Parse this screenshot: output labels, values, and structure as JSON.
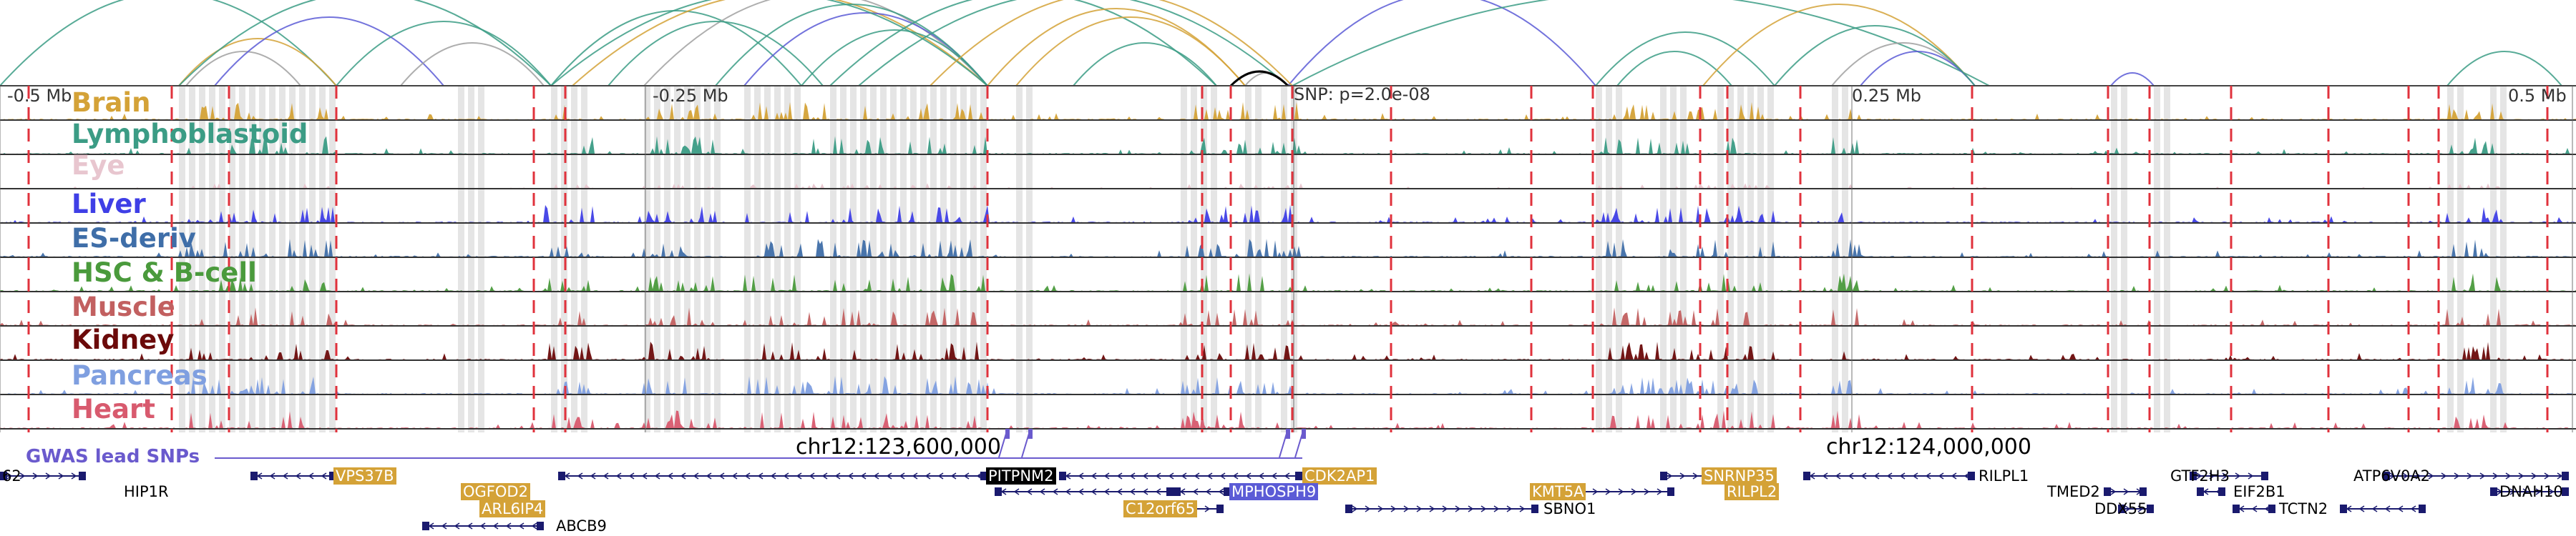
{
  "colors": {
    "brain": "#d4a237",
    "lymphoblastoid": "#3b9c85",
    "eye": "#e8c6cf",
    "liver": "#3f3fe6",
    "es_deriv": "#3f6ea8",
    "hsc_bcell": "#4a9a3c",
    "muscle": "#c26060",
    "kidney": "#6b0a0a",
    "pancreas": "#7f9fe0",
    "heart": "#d85a6e",
    "gwas": "#6a5acd",
    "marker": "#e0323c"
  },
  "tracks": [
    {
      "label": "Brain",
      "color": "#d4a237"
    },
    {
      "label": "Lymphoblastoid",
      "color": "#3b9c85"
    },
    {
      "label": "Eye",
      "color": "#e8c6cf"
    },
    {
      "label": "Liver",
      "color": "#3f3fe6"
    },
    {
      "label": "ES-deriv",
      "color": "#3f6ea8"
    },
    {
      "label": "HSC & B-cell",
      "color": "#4a9a3c"
    },
    {
      "label": "Muscle",
      "color": "#c26060"
    },
    {
      "label": "Kidney",
      "color": "#6b0a0a"
    },
    {
      "label": "Pancreas",
      "color": "#7f9fe0"
    },
    {
      "label": "Heart",
      "color": "#d85a6e"
    }
  ],
  "axis_labels": [
    "-0.5 Mb",
    "-0.25 Mb",
    "0.25 Mb",
    "0.5 Mb"
  ],
  "snp_label": "SNP: p=2.0e-08",
  "gwas_label": "GWAS lead SNPs",
  "chrom_labels": [
    "chr12:123,600,000",
    "chr12:124,000,000"
  ],
  "genes": [
    {
      "name": "62",
      "style": "plain"
    },
    {
      "name": "HIP1R",
      "style": "plain"
    },
    {
      "name": "VPS37B",
      "style": "orange"
    },
    {
      "name": "OGFOD2",
      "style": "orange"
    },
    {
      "name": "ARL6IP4",
      "style": "orange"
    },
    {
      "name": "ABCB9",
      "style": "plain"
    },
    {
      "name": "PITPNM2",
      "style": "black"
    },
    {
      "name": "CDK2AP1",
      "style": "orange"
    },
    {
      "name": "MPHOSPH9",
      "style": "purple"
    },
    {
      "name": "C12orf65",
      "style": "orange"
    },
    {
      "name": "KMT5A",
      "style": "orange"
    },
    {
      "name": "SBNO1",
      "style": "plain"
    },
    {
      "name": "SNRNP35",
      "style": "orange"
    },
    {
      "name": "RILPL2",
      "style": "orange"
    },
    {
      "name": "RILPL1",
      "style": "plain"
    },
    {
      "name": "TMED2",
      "style": "plain"
    },
    {
      "name": "DDX55",
      "style": "plain"
    },
    {
      "name": "GTF2H3",
      "style": "plain"
    },
    {
      "name": "EIF2B1",
      "style": "plain"
    },
    {
      "name": "TCTN2",
      "style": "plain"
    },
    {
      "name": "ATP6V0A2",
      "style": "plain"
    },
    {
      "name": "DNAH10",
      "style": "plain"
    }
  ]
}
